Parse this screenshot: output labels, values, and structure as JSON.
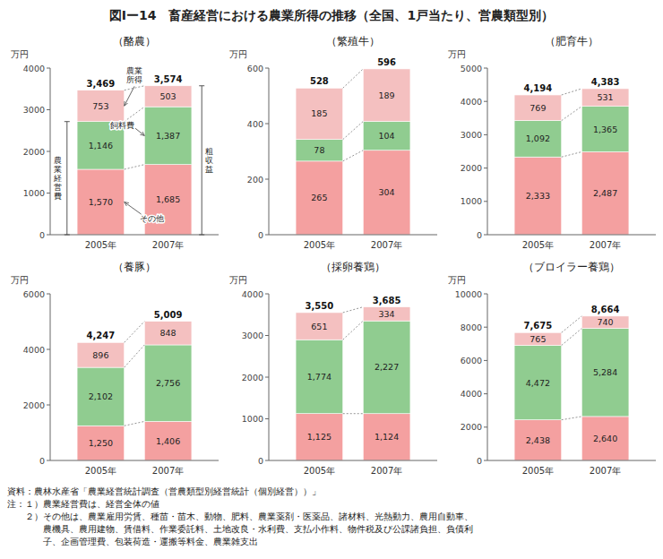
{
  "title": "図Ⅰー14　畜産経営における農業所得の推移（全国、1戸当たり、営農類型別）",
  "notes": [
    "資料：農林水産省「農業経営統計調査（営農類型別経営統計（個別経営））」",
    "注：１）農業経営費は、経営全体の値",
    "　　２）その他は、農業雇用労賃、種苗・苗木、動物、肥料、農業薬剤・医薬品、諸材料、光熱動力、農用自動車、",
    "　　　　農機具、農用建物、賃借料、作業委託料、土地改良・水利費、支払小作料、物件税及び公課諸負担、負債利",
    "　　　　子、企画管理費、包装荷造・運搬等料金、農業雑支出"
  ],
  "chart_data": [
    {
      "type": "bar",
      "stacked": true,
      "data_labels": true,
      "grid": false,
      "title": "（酪農）",
      "y_label": "万円",
      "categories": [
        "2005年",
        "2007年"
      ],
      "series": [
        {
          "color": "#f4a0a0",
          "values": [
            1570,
            1685
          ],
          "value_labels": [
            "1,570",
            "1,685"
          ]
        },
        {
          "color": "#90cc90",
          "values": [
            1146,
            1387
          ],
          "value_labels": [
            "1,146",
            "1,387"
          ]
        },
        {
          "color": "#f4c0c0",
          "values": [
            753,
            503
          ],
          "value_labels": [
            "753",
            "503"
          ]
        }
      ],
      "totals": [
        3469,
        3574
      ],
      "total_labels": [
        "3,469",
        "3,574"
      ],
      "ylim": [
        0,
        4000
      ],
      "yticks": [
        0,
        1000,
        2000,
        3000,
        4000
      ],
      "annotations": [
        "農業\n所得",
        "飼料費",
        "その他",
        "農\n業\n経\n営\n費",
        "粗\n収\n益"
      ]
    },
    {
      "type": "bar",
      "stacked": true,
      "data_labels": true,
      "grid": false,
      "title": "（繁殖牛）",
      "y_label": "万円",
      "categories": [
        "2005年",
        "2007年"
      ],
      "series": [
        {
          "color": "#f4a0a0",
          "values": [
            265,
            304
          ],
          "value_labels": [
            "265",
            "304"
          ]
        },
        {
          "color": "#90cc90",
          "values": [
            78,
            104
          ],
          "value_labels": [
            "78",
            "104"
          ]
        },
        {
          "color": "#f4c0c0",
          "values": [
            185,
            189
          ],
          "value_labels": [
            "185",
            "189"
          ]
        }
      ],
      "totals": [
        528,
        596
      ],
      "total_labels": [
        "528",
        "596"
      ],
      "ylim": [
        0,
        600
      ],
      "yticks": [
        0,
        200,
        400,
        600
      ]
    },
    {
      "type": "bar",
      "stacked": true,
      "data_labels": true,
      "grid": false,
      "title": "（肥育牛）",
      "y_label": "万円",
      "categories": [
        "2005年",
        "2007年"
      ],
      "series": [
        {
          "color": "#f4a0a0",
          "values": [
            2333,
            2487
          ],
          "value_labels": [
            "2,333",
            "2,487"
          ]
        },
        {
          "color": "#90cc90",
          "values": [
            1092,
            1365
          ],
          "value_labels": [
            "1,092",
            "1,365"
          ]
        },
        {
          "color": "#f4c0c0",
          "values": [
            769,
            531
          ],
          "value_labels": [
            "769",
            "531"
          ]
        }
      ],
      "totals": [
        4194,
        4383
      ],
      "total_labels": [
        "4,194",
        "4,383"
      ],
      "ylim": [
        0,
        5000
      ],
      "yticks": [
        0,
        1000,
        2000,
        3000,
        4000,
        5000
      ]
    },
    {
      "type": "bar",
      "stacked": true,
      "data_labels": true,
      "grid": false,
      "title": "（養豚）",
      "y_label": "万円",
      "categories": [
        "2005年",
        "2007年"
      ],
      "series": [
        {
          "color": "#f4a0a0",
          "values": [
            1250,
            1406
          ],
          "value_labels": [
            "1,250",
            "1,406"
          ]
        },
        {
          "color": "#90cc90",
          "values": [
            2102,
            2756
          ],
          "value_labels": [
            "2,102",
            "2,756"
          ]
        },
        {
          "color": "#f4c0c0",
          "values": [
            896,
            848
          ],
          "value_labels": [
            "896",
            "848"
          ]
        }
      ],
      "totals": [
        4247,
        5009
      ],
      "total_labels": [
        "4,247",
        "5,009"
      ],
      "ylim": [
        0,
        6000
      ],
      "yticks": [
        0,
        2000,
        4000,
        6000
      ]
    },
    {
      "type": "bar",
      "stacked": true,
      "data_labels": true,
      "grid": false,
      "title": "（採卵養鶏）",
      "y_label": "万円",
      "categories": [
        "2005年",
        "2007年"
      ],
      "series": [
        {
          "color": "#f4a0a0",
          "values": [
            1125,
            1124
          ],
          "value_labels": [
            "1,125",
            "1,124"
          ]
        },
        {
          "color": "#90cc90",
          "values": [
            1774,
            2227
          ],
          "value_labels": [
            "1,774",
            "2,227"
          ]
        },
        {
          "color": "#f4c0c0",
          "values": [
            651,
            334
          ],
          "value_labels": [
            "651",
            "334"
          ]
        }
      ],
      "totals": [
        3550,
        3685
      ],
      "total_labels": [
        "3,550",
        "3,685"
      ],
      "ylim": [
        0,
        4000
      ],
      "yticks": [
        0,
        1000,
        2000,
        3000,
        4000
      ]
    },
    {
      "type": "bar",
      "stacked": true,
      "data_labels": true,
      "grid": false,
      "title": "（ブロイラー養鶏）",
      "y_label": "万円",
      "categories": [
        "2005年",
        "2007年"
      ],
      "series": [
        {
          "color": "#f4a0a0",
          "values": [
            2438,
            2640
          ],
          "value_labels": [
            "2,438",
            "2,640"
          ]
        },
        {
          "color": "#90cc90",
          "values": [
            4472,
            5284
          ],
          "value_labels": [
            "4,472",
            "5,284"
          ]
        },
        {
          "color": "#f4c0c0",
          "values": [
            765,
            740
          ],
          "value_labels": [
            "765",
            "740"
          ]
        }
      ],
      "totals": [
        7675,
        8664
      ],
      "total_labels": [
        "7,675",
        "8,664"
      ],
      "ylim": [
        0,
        10000
      ],
      "yticks": [
        0,
        2000,
        4000,
        6000,
        8000,
        10000
      ]
    }
  ]
}
